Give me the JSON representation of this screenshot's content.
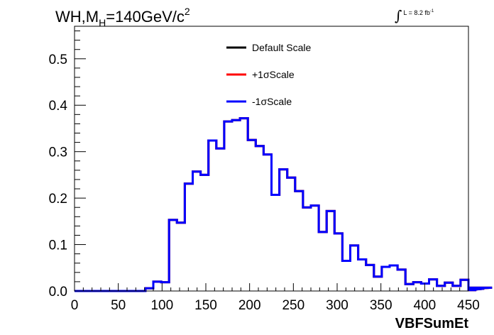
{
  "chart_data": {
    "type": "line",
    "title": {
      "prefix": "WH,M",
      "sub": "H",
      "main": "=140GeV/c",
      "sup": "2"
    },
    "annotation": {
      "integral": "∫",
      "text": "L = 8.2 fb",
      "sup": "-1"
    },
    "xlabel": "VBFSumEt",
    "ylabel": "",
    "xlim": [
      0,
      450
    ],
    "ylim": [
      0,
      0.57
    ],
    "x_ticks": [
      "0",
      "50",
      "100",
      "150",
      "200",
      "250",
      "300",
      "350",
      "400",
      "450"
    ],
    "y_ticks": [
      "0.0",
      "0.1",
      "0.2",
      "0.3",
      "0.4",
      "0.5"
    ],
    "grid": false,
    "legend_position": "top-center",
    "bin_width": 9,
    "bin_start": 0,
    "series": [
      {
        "name": "Default Scale",
        "color": "#000000",
        "values": [
          0,
          0,
          0,
          0,
          0,
          0,
          0,
          0,
          0,
          0.006,
          0.02,
          0.019,
          0.153,
          0.147,
          0.231,
          0.257,
          0.25,
          0.324,
          0.307,
          0.365,
          0.368,
          0.372,
          0.325,
          0.312,
          0.294,
          0.207,
          0.262,
          0.244,
          0.215,
          0.18,
          0.184,
          0.127,
          0.172,
          0.124,
          0.065,
          0.098,
          0.068,
          0.056,
          0.031,
          0.052,
          0.055,
          0.046,
          0.015,
          0.019,
          0.016,
          0.025,
          0.011,
          0.018,
          0.011,
          0.024,
          0.003,
          0.002,
          0.005,
          0.007
        ]
      },
      {
        "name": "+1σScale",
        "color": "#ff0000",
        "values": [
          0,
          0,
          0,
          0,
          0,
          0,
          0,
          0,
          0,
          0.006,
          0.02,
          0.019,
          0.153,
          0.147,
          0.231,
          0.257,
          0.25,
          0.324,
          0.307,
          0.365,
          0.368,
          0.372,
          0.325,
          0.312,
          0.294,
          0.207,
          0.262,
          0.244,
          0.215,
          0.18,
          0.184,
          0.127,
          0.172,
          0.124,
          0.065,
          0.098,
          0.068,
          0.056,
          0.031,
          0.052,
          0.055,
          0.046,
          0.015,
          0.019,
          0.016,
          0.025,
          0.011,
          0.018,
          0.011,
          0.024,
          0.003,
          0.002,
          0.005,
          0.007
        ]
      },
      {
        "name": "-1σScale",
        "color": "#0000ff",
        "values": [
          0,
          0,
          0,
          0,
          0,
          0,
          0,
          0,
          0,
          0.006,
          0.02,
          0.019,
          0.153,
          0.147,
          0.231,
          0.257,
          0.25,
          0.324,
          0.307,
          0.365,
          0.368,
          0.372,
          0.325,
          0.312,
          0.294,
          0.207,
          0.262,
          0.244,
          0.215,
          0.18,
          0.184,
          0.127,
          0.172,
          0.124,
          0.065,
          0.098,
          0.068,
          0.056,
          0.031,
          0.052,
          0.055,
          0.046,
          0.015,
          0.019,
          0.016,
          0.025,
          0.011,
          0.018,
          0.011,
          0.024,
          0.003,
          0.002,
          0.005,
          0.007
        ]
      }
    ]
  }
}
